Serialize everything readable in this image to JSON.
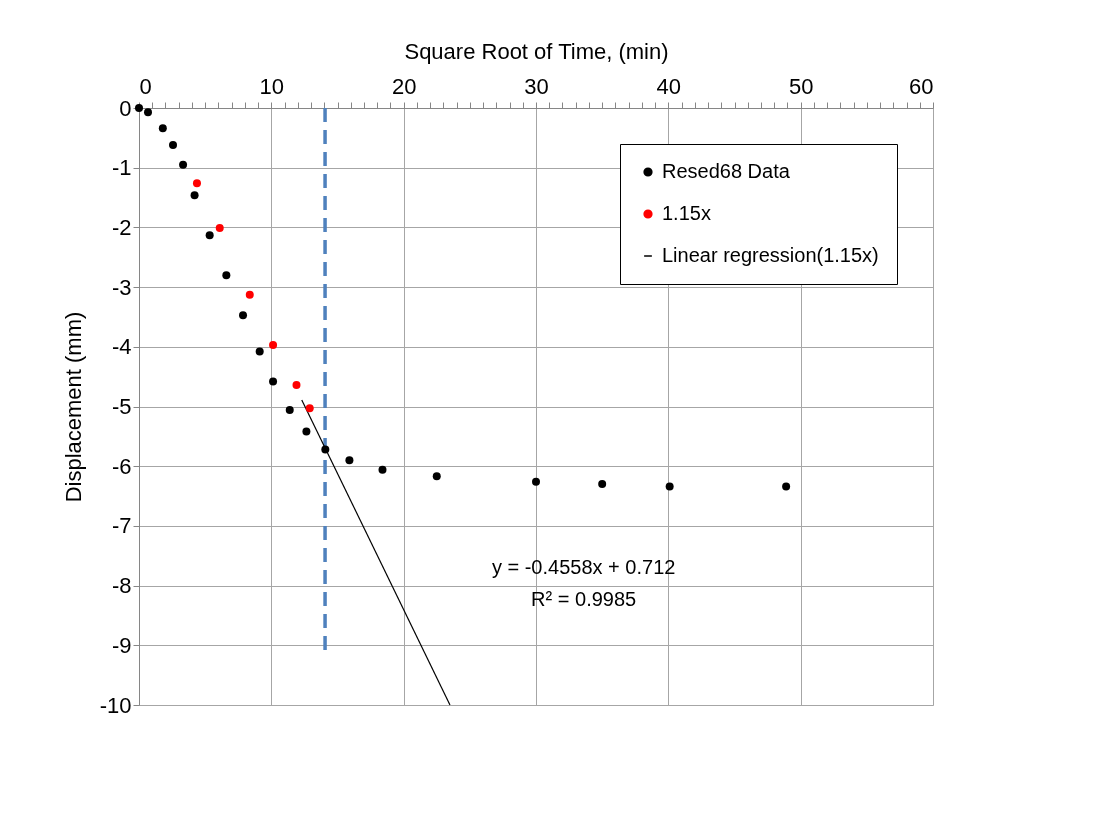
{
  "chart_data": {
    "type": "scatter",
    "xlabel": "Square Root of Time, (min)",
    "ylabel": "Displacement  (mm)",
    "xlim": [
      0,
      60
    ],
    "ylim": [
      -10,
      0
    ],
    "xticks": [
      0,
      {
        "value": 1,
        "label": null
      },
      {
        "value": 2,
        "label": null
      },
      {
        "value": 3,
        "label": null
      },
      {
        "value": 4,
        "label": null
      },
      {
        "value": 5,
        "label": null
      },
      {
        "value": 6,
        "label": null
      },
      {
        "value": 7,
        "label": null
      },
      {
        "value": 8,
        "label": null
      },
      {
        "value": 9,
        "label": null
      },
      10,
      {
        "value": 11,
        "label": null
      },
      {
        "value": 12,
        "label": null
      },
      {
        "value": 13,
        "label": null
      },
      {
        "value": 14,
        "label": null
      },
      {
        "value": 15,
        "label": null
      },
      {
        "value": 16,
        "label": null
      },
      {
        "value": 17,
        "label": null
      },
      {
        "value": 18,
        "label": null
      },
      {
        "value": 19,
        "label": null
      },
      20,
      {
        "value": 21,
        "label": null
      },
      {
        "value": 22,
        "label": null
      },
      {
        "value": 23,
        "label": null
      },
      {
        "value": 24,
        "label": null
      },
      {
        "value": 25,
        "label": null
      },
      {
        "value": 26,
        "label": null
      },
      {
        "value": 27,
        "label": null
      },
      {
        "value": 28,
        "label": null
      },
      {
        "value": 29,
        "label": null
      },
      30,
      {
        "value": 31,
        "label": null
      },
      {
        "value": 32,
        "label": null
      },
      {
        "value": 33,
        "label": null
      },
      {
        "value": 34,
        "label": null
      },
      {
        "value": 35,
        "label": null
      },
      {
        "value": 36,
        "label": null
      },
      {
        "value": 37,
        "label": null
      },
      {
        "value": 38,
        "label": null
      },
      {
        "value": 39,
        "label": null
      },
      40,
      {
        "value": 41,
        "label": null
      },
      {
        "value": 42,
        "label": null
      },
      {
        "value": 43,
        "label": null
      },
      {
        "value": 44,
        "label": null
      },
      {
        "value": 45,
        "label": null
      },
      {
        "value": 46,
        "label": null
      },
      {
        "value": 47,
        "label": null
      },
      {
        "value": 48,
        "label": null
      },
      {
        "value": 49,
        "label": null
      },
      50,
      {
        "value": 51,
        "label": null
      },
      {
        "value": 52,
        "label": null
      },
      {
        "value": 53,
        "label": null
      },
      {
        "value": 54,
        "label": null
      },
      {
        "value": 55,
        "label": null
      },
      {
        "value": 56,
        "label": null
      },
      {
        "value": 57,
        "label": null
      },
      {
        "value": 58,
        "label": null
      },
      {
        "value": 59,
        "label": null
      },
      60
    ],
    "yticks": [
      0,
      -1,
      -2,
      -3,
      -4,
      -5,
      -6,
      -7,
      -8,
      -9,
      -10
    ],
    "grid": true,
    "legend": "top right",
    "series": [
      {
        "name": "Resed68 Data",
        "marker": "circle",
        "color": "#000000",
        "x": [
          0,
          0.68,
          1.8,
          2.57,
          3.33,
          4.2,
          5.34,
          6.6,
          7.86,
          9.12,
          10.13,
          11.39,
          12.65,
          14.08,
          15.9,
          18.4,
          22.5,
          30,
          35,
          40.1,
          48.9
        ],
        "values": [
          0,
          -0.07,
          -0.34,
          -0.62,
          -0.95,
          -1.46,
          -2.13,
          -2.8,
          -3.47,
          -4.08,
          -4.58,
          -5.06,
          -5.42,
          -5.72,
          -5.9,
          -6.06,
          -6.17,
          -6.26,
          -6.3,
          -6.34,
          -6.34
        ]
      },
      {
        "name": "1.15x",
        "marker": "circle",
        "color": "#ff0000",
        "x": [
          4.38,
          6.1,
          8.37,
          10.13,
          11.9,
          12.9
        ],
        "values": [
          -1.26,
          -2.01,
          -3.13,
          -3.97,
          -4.64,
          -5.03
        ]
      },
      {
        "name": "Linear regression(1.15x)",
        "type": "line",
        "marker": "none",
        "line_style": "solid",
        "color": "#000000",
        "x": [
          12.3,
          23.5
        ],
        "values": [
          -4.89,
          -10
        ]
      },
      {
        "type": "line",
        "marker": "none",
        "line_style": "dashed",
        "color": "#4f81bd",
        "x": [
          14.06,
          14.06
        ],
        "values": [
          0,
          -9.1
        ]
      }
    ],
    "annotations": [
      "y = -0.4558x + 0.712",
      "R² = 0.9985"
    ]
  }
}
